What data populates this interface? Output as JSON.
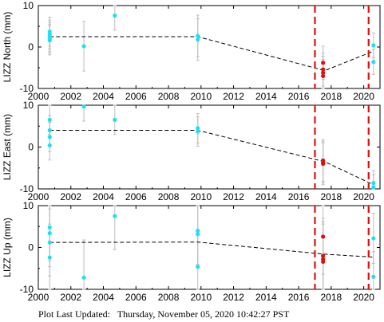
{
  "footer": {
    "text": "Plot Last Updated:   Thursday, November 05, 2020 10:42:27 PST"
  },
  "colors": {
    "early_points": "#1ee0f0",
    "recent_points": "#e01010",
    "event_lines": "#e01010",
    "error_bars": "#bdbdbd",
    "trend": "#000000"
  },
  "chart_data": [
    {
      "type": "scatter",
      "ylabel": "LIZZ North (mm)",
      "xlim": [
        2000,
        2021
      ],
      "ylim": [
        -10,
        10
      ],
      "xticks": [
        "2000",
        "2002",
        "2004",
        "2006",
        "2008",
        "2010",
        "2012",
        "2014",
        "2016",
        "2018",
        "2020"
      ],
      "yticks": [
        "10",
        "0",
        "-10"
      ],
      "event_lines": [
        2017.0,
        2020.3
      ],
      "series": [
        {
          "color": "early",
          "points": [
            [
              2000.7,
              3.7
            ],
            [
              2000.7,
              3.0
            ],
            [
              2000.7,
              2.4
            ],
            [
              2000.7,
              2.0
            ],
            [
              2000.7,
              1.6
            ],
            [
              2002.8,
              0.2
            ],
            [
              2004.7,
              7.6
            ],
            [
              2009.8,
              2.7
            ],
            [
              2009.8,
              1.8
            ]
          ],
          "errors": [
            3.5,
            3.5,
            3.5,
            3.5,
            3.5,
            6.0,
            3.5,
            5.0,
            5.0
          ]
        },
        {
          "color": "recent",
          "points": [
            [
              2017.5,
              -3.8
            ],
            [
              2017.5,
              -5.4
            ],
            [
              2017.5,
              -6.2
            ],
            [
              2017.5,
              -7.0
            ]
          ],
          "errors": [
            4.0,
            4.0,
            4.0,
            4.0
          ]
        },
        {
          "color": "early",
          "points": [
            [
              2020.6,
              0.4
            ],
            [
              2020.6,
              -3.6
            ]
          ],
          "errors": [
            3.0,
            3.0
          ]
        }
      ],
      "trend": [
        [
          2000.7,
          2.5
        ],
        [
          2009.8,
          2.5
        ],
        [
          2017.6,
          -5.7
        ],
        [
          2020.6,
          -1.0
        ]
      ]
    },
    {
      "type": "scatter",
      "ylabel": "LIZZ East (mm)",
      "xlim": [
        2000,
        2021
      ],
      "ylim": [
        -10,
        10
      ],
      "xticks": [
        "2000",
        "2002",
        "2004",
        "2006",
        "2008",
        "2010",
        "2012",
        "2014",
        "2016",
        "2018",
        "2020"
      ],
      "yticks": [
        "10",
        "0",
        "-10"
      ],
      "event_lines": [
        2017.0,
        2020.3
      ],
      "series": [
        {
          "color": "early",
          "points": [
            [
              2000.7,
              6.5
            ],
            [
              2000.7,
              4.0
            ],
            [
              2000.7,
              2.4
            ],
            [
              2000.7,
              0.4
            ],
            [
              2002.8,
              9.7
            ],
            [
              2004.7,
              6.5
            ],
            [
              2009.8,
              4.5
            ],
            [
              2009.8,
              3.7
            ]
          ],
          "errors": [
            3.5,
            3.5,
            3.5,
            3.5,
            3.5,
            3.5,
            3.5,
            3.5
          ]
        },
        {
          "color": "recent",
          "points": [
            [
              2017.5,
              -3.2
            ],
            [
              2017.5,
              -3.6
            ],
            [
              2017.5,
              -4.0
            ]
          ],
          "errors": [
            5.0,
            5.0,
            5.0
          ]
        },
        {
          "color": "early",
          "points": [
            [
              2020.6,
              -8.6
            ],
            [
              2020.6,
              -9.6
            ]
          ],
          "errors": [
            3.0,
            3.0
          ]
        }
      ],
      "trend": [
        [
          2000.7,
          4.0
        ],
        [
          2009.8,
          4.0
        ],
        [
          2017.6,
          -3.5
        ],
        [
          2020.6,
          -9.0
        ]
      ]
    },
    {
      "type": "scatter",
      "ylabel": "LIZZ Up (mm)",
      "xlim": [
        2000,
        2021
      ],
      "ylim": [
        -10,
        10
      ],
      "xticks": [
        "2000",
        "2002",
        "2004",
        "2006",
        "2008",
        "2010",
        "2012",
        "2014",
        "2016",
        "2018",
        "2020"
      ],
      "yticks": [
        "10",
        "0",
        "-10"
      ],
      "event_lines": [
        2017.0,
        2020.3
      ],
      "series": [
        {
          "color": "early",
          "points": [
            [
              2000.7,
              4.8
            ],
            [
              2000.7,
              3.4
            ],
            [
              2000.7,
              1.2
            ],
            [
              2000.7,
              -2.4
            ],
            [
              2002.8,
              -7.2
            ],
            [
              2004.7,
              7.5
            ],
            [
              2009.8,
              4.0
            ],
            [
              2009.8,
              3.2
            ],
            [
              2009.8,
              -4.6
            ]
          ],
          "errors": [
            8.0,
            8.0,
            8.0,
            8.0,
            9.0,
            8.0,
            8.0,
            8.0,
            8.0
          ]
        },
        {
          "color": "recent",
          "points": [
            [
              2017.5,
              2.6
            ],
            [
              2017.5,
              -2.0
            ],
            [
              2017.5,
              -2.8
            ],
            [
              2017.5,
              -3.4
            ]
          ],
          "errors": [
            9.0,
            9.0,
            9.0,
            9.0
          ]
        },
        {
          "color": "early",
          "points": [
            [
              2020.6,
              2.2
            ],
            [
              2020.6,
              -7.0
            ]
          ],
          "errors": [
            6.0,
            6.0
          ]
        }
      ],
      "trend": [
        [
          2000.7,
          1.2
        ],
        [
          2009.8,
          1.3
        ],
        [
          2017.6,
          -1.6
        ],
        [
          2020.6,
          -2.3
        ]
      ]
    }
  ]
}
